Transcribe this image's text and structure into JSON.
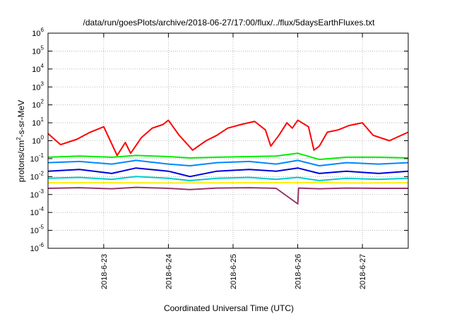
{
  "chart_data": {
    "type": "line",
    "title": "/data/run/goesPlots/archive/2018-06-27/17:00/flux/../flux/5daysEarthFluxes.txt",
    "xlabel": "Coordinated Universal Time (UTC)",
    "ylabel": "protons/cm2-s-sr-MeV",
    "ylabel_parts": {
      "pre": "protons/cm",
      "sup": "2",
      "post": "-s-sr-MeV"
    },
    "y_scale": "log",
    "ylim": [
      1e-06,
      1000000
    ],
    "y_ticks": [
      {
        "value": 1e-06,
        "base": "10",
        "exp": "-6"
      },
      {
        "value": 1e-05,
        "base": "10",
        "exp": "-5"
      },
      {
        "value": 0.0001,
        "base": "10",
        "exp": "-4"
      },
      {
        "value": 0.001,
        "base": "10",
        "exp": "-3"
      },
      {
        "value": 0.01,
        "base": "10",
        "exp": "-2"
      },
      {
        "value": 0.1,
        "base": "10",
        "exp": "-1"
      },
      {
        "value": 1,
        "base": "10",
        "exp": "0"
      },
      {
        "value": 10,
        "base": "10",
        "exp": "1"
      },
      {
        "value": 100,
        "base": "10",
        "exp": "2"
      },
      {
        "value": 1000,
        "base": "10",
        "exp": "3"
      },
      {
        "value": 10000,
        "base": "10",
        "exp": "4"
      },
      {
        "value": 100000,
        "base": "10",
        "exp": "5"
      },
      {
        "value": 1000000,
        "base": "10",
        "exp": "6"
      }
    ],
    "xlim": [
      "2018-06-22 03:20",
      "2018-06-27 17:00"
    ],
    "x_ticks": [
      "2018-6-23",
      "2018-6-24",
      "2018-6-25",
      "2018-6-26",
      "2018-6-27"
    ],
    "grid": true,
    "legend": "none",
    "series": [
      {
        "color": "#ff0000",
        "x": [
          "2018-06-22 03:20",
          "2018-06-22 08:00",
          "2018-06-22 14:00",
          "2018-06-22 19:00",
          "2018-06-23 00:00",
          "2018-06-23 05:00",
          "2018-06-23 08:00",
          "2018-06-23 10:00",
          "2018-06-23 14:00",
          "2018-06-23 18:00",
          "2018-06-23 22:00",
          "2018-06-24 00:00",
          "2018-06-24 04:00",
          "2018-06-24 09:00",
          "2018-06-24 14:00",
          "2018-06-24 18:00",
          "2018-06-24 22:00",
          "2018-06-25 03:00",
          "2018-06-25 08:00",
          "2018-06-25 12:00",
          "2018-06-25 14:00",
          "2018-06-25 17:00",
          "2018-06-25 20:00",
          "2018-06-25 22:00",
          "2018-06-26 00:00",
          "2018-06-26 04:00",
          "2018-06-26 06:00",
          "2018-06-26 08:00",
          "2018-06-26 11:00",
          "2018-06-26 15:00",
          "2018-06-26 19:00",
          "2018-06-27 00:00",
          "2018-06-27 04:00",
          "2018-06-27 10:00",
          "2018-06-27 17:00"
        ],
        "values": [
          2.5,
          0.6,
          1.2,
          3.0,
          6.0,
          0.15,
          0.8,
          0.2,
          1.5,
          5.0,
          8.0,
          14.0,
          2.0,
          0.3,
          1.0,
          2.0,
          5.0,
          8.0,
          12.0,
          4.0,
          0.5,
          2.0,
          10.0,
          5.0,
          14.0,
          6.0,
          0.3,
          0.5,
          3.0,
          4.0,
          7.0,
          10.0,
          2.0,
          1.0,
          3.0
        ]
      },
      {
        "color": "#00ee00",
        "x": [
          "2018-06-22 03:20",
          "2018-06-22 15:00",
          "2018-06-23 03:00",
          "2018-06-23 12:00",
          "2018-06-24 00:00",
          "2018-06-24 08:00",
          "2018-06-24 18:00",
          "2018-06-25 06:00",
          "2018-06-25 16:00",
          "2018-06-26 00:00",
          "2018-06-26 08:00",
          "2018-06-26 18:00",
          "2018-06-27 06:00",
          "2018-06-27 17:00"
        ],
        "values": [
          0.12,
          0.14,
          0.12,
          0.15,
          0.13,
          0.11,
          0.12,
          0.13,
          0.14,
          0.2,
          0.09,
          0.12,
          0.12,
          0.11
        ]
      },
      {
        "color": "#0088ff",
        "x": [
          "2018-06-22 03:20",
          "2018-06-22 15:00",
          "2018-06-23 03:00",
          "2018-06-23 12:00",
          "2018-06-24 00:00",
          "2018-06-24 08:00",
          "2018-06-24 18:00",
          "2018-06-25 06:00",
          "2018-06-25 16:00",
          "2018-06-26 00:00",
          "2018-06-26 08:00",
          "2018-06-26 18:00",
          "2018-06-27 06:00",
          "2018-06-27 17:00"
        ],
        "values": [
          0.06,
          0.07,
          0.05,
          0.08,
          0.05,
          0.04,
          0.06,
          0.07,
          0.05,
          0.08,
          0.04,
          0.06,
          0.05,
          0.06
        ]
      },
      {
        "color": "#0000dd",
        "x": [
          "2018-06-22 03:20",
          "2018-06-22 15:00",
          "2018-06-23 03:00",
          "2018-06-23 12:00",
          "2018-06-24 00:00",
          "2018-06-24 08:00",
          "2018-06-24 18:00",
          "2018-06-25 06:00",
          "2018-06-25 16:00",
          "2018-06-26 00:00",
          "2018-06-26 08:00",
          "2018-06-26 18:00",
          "2018-06-27 06:00",
          "2018-06-27 17:00"
        ],
        "values": [
          0.02,
          0.025,
          0.015,
          0.03,
          0.02,
          0.01,
          0.02,
          0.025,
          0.02,
          0.03,
          0.015,
          0.02,
          0.015,
          0.02
        ]
      },
      {
        "color": "#00cccc",
        "x": [
          "2018-06-22 03:20",
          "2018-06-22 15:00",
          "2018-06-23 03:00",
          "2018-06-23 12:00",
          "2018-06-24 00:00",
          "2018-06-24 08:00",
          "2018-06-24 18:00",
          "2018-06-25 06:00",
          "2018-06-25 16:00",
          "2018-06-26 00:00",
          "2018-06-26 08:00",
          "2018-06-26 18:00",
          "2018-06-27 06:00",
          "2018-06-27 17:00"
        ],
        "values": [
          0.008,
          0.009,
          0.007,
          0.01,
          0.008,
          0.006,
          0.008,
          0.009,
          0.007,
          0.009,
          0.006,
          0.008,
          0.007,
          0.008
        ]
      },
      {
        "color": "#ffee00",
        "x": [
          "2018-06-22 03:20",
          "2018-06-23 00:00",
          "2018-06-24 00:00",
          "2018-06-25 00:00",
          "2018-06-26 00:00",
          "2018-06-27 00:00",
          "2018-06-27 17:00"
        ],
        "values": [
          0.0045,
          0.0045,
          0.0044,
          0.0045,
          0.0046,
          0.0044,
          0.0045
        ]
      },
      {
        "color": "#993366",
        "x": [
          "2018-06-22 03:20",
          "2018-06-22 15:00",
          "2018-06-23 03:00",
          "2018-06-23 12:00",
          "2018-06-24 00:00",
          "2018-06-24 08:00",
          "2018-06-24 18:00",
          "2018-06-25 06:00",
          "2018-06-25 16:00",
          "2018-06-26 00:00",
          "2018-06-26 00:20",
          "2018-06-26 08:00",
          "2018-06-26 18:00",
          "2018-06-27 06:00",
          "2018-06-27 17:00"
        ],
        "values": [
          0.0022,
          0.0024,
          0.0021,
          0.0025,
          0.0022,
          0.0019,
          0.0023,
          0.0024,
          0.0022,
          0.0003,
          0.0023,
          0.0021,
          0.0023,
          0.0022,
          0.0022
        ]
      }
    ]
  }
}
